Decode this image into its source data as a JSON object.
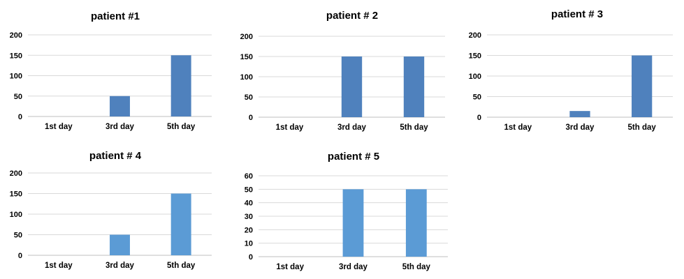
{
  "chart_data": [
    {
      "type": "bar",
      "title": "patient #1",
      "categories": [
        "1st day",
        "3rd day",
        "5th day"
      ],
      "values": [
        0,
        50,
        150
      ],
      "ylim": [
        0,
        200
      ],
      "yticks": [
        "0",
        "50",
        "100",
        "150",
        "200"
      ],
      "bar_color": "#4f81bd",
      "grid": true,
      "legend": "none"
    },
    {
      "type": "bar",
      "title": "patient # 2",
      "categories": [
        "1st day",
        "3rd day",
        "5th day"
      ],
      "values": [
        0,
        150,
        150
      ],
      "ylim": [
        0,
        200
      ],
      "yticks": [
        "0",
        "50",
        "100",
        "150",
        "200"
      ],
      "bar_color": "#4f81bd",
      "grid": true,
      "legend": "none"
    },
    {
      "type": "bar",
      "title": "patient # 3",
      "categories": [
        "1st day",
        "3rd day",
        "5th day"
      ],
      "values": [
        0,
        15,
        150
      ],
      "ylim": [
        0,
        200
      ],
      "yticks": [
        "0",
        "50",
        "100",
        "150",
        "200"
      ],
      "bar_color": "#4f81bd",
      "grid": true,
      "legend": "none"
    },
    {
      "type": "bar",
      "title": "patient # 4",
      "categories": [
        "1st day",
        "3rd day",
        "5th day"
      ],
      "values": [
        0,
        50,
        150
      ],
      "ylim": [
        0,
        200
      ],
      "yticks": [
        "0",
        "50",
        "100",
        "150",
        "200"
      ],
      "bar_color": "#5b9bd5",
      "grid": true,
      "legend": "none"
    },
    {
      "type": "bar",
      "title": "patient # 5",
      "categories": [
        "1st day",
        "3rd day",
        "5th day"
      ],
      "values": [
        0,
        50,
        50
      ],
      "ylim": [
        0,
        60
      ],
      "yticks": [
        "0",
        "10",
        "20",
        "30",
        "40",
        "50",
        "60"
      ],
      "bar_color": "#5b9bd5",
      "grid": true,
      "legend": "none"
    }
  ]
}
